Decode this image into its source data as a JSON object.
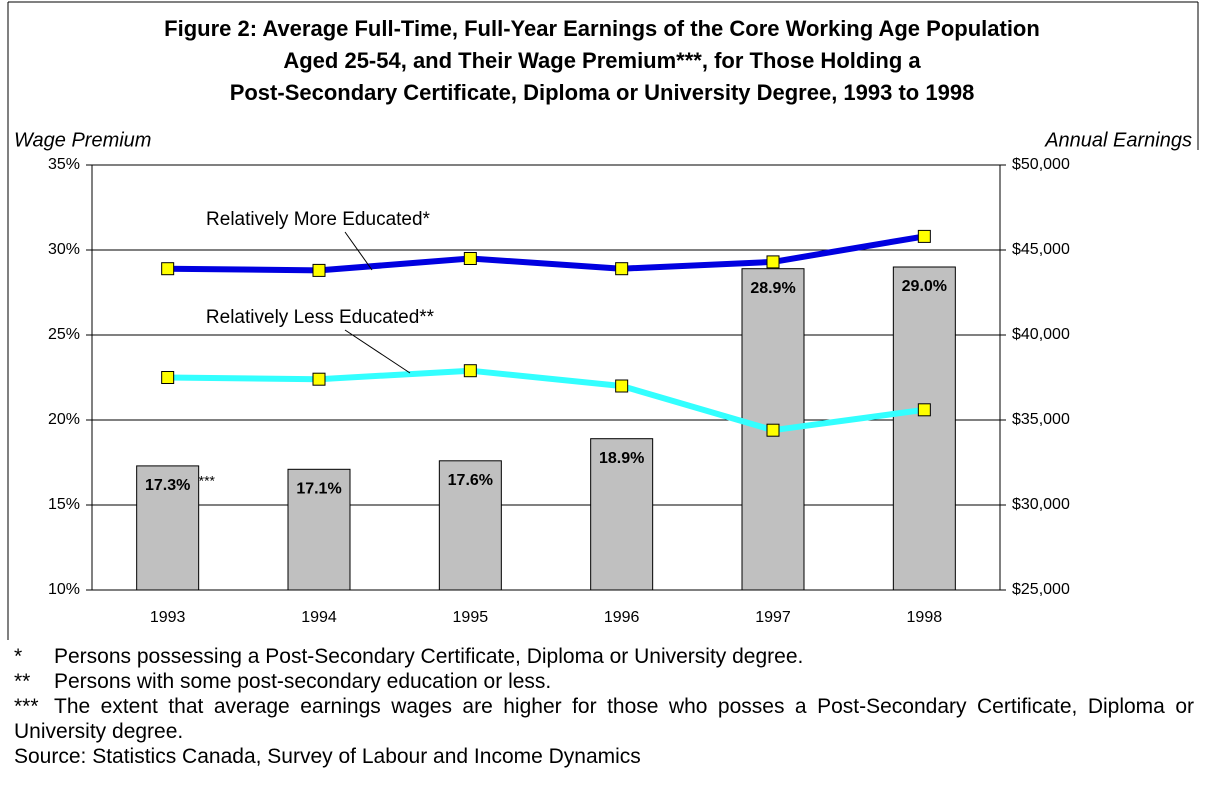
{
  "chart_data": {
    "type": "bar_line",
    "title": [
      "Figure 2:  Average Full-Time, Full-Year Earnings of the Core Working Age Population",
      "Aged 25-54, and Their Wage Premium***, for Those Holding a",
      "Post-Secondary Certificate, Diploma or University Degree, 1993 to 1998"
    ],
    "y_label": "Wage Premium",
    "y2_label": "Annual Earnings",
    "categories": [
      "1993",
      "1994",
      "1995",
      "1996",
      "1997",
      "1998"
    ],
    "bars": {
      "color": "#c0c0c0",
      "values": [
        17.3,
        17.1,
        17.6,
        18.9,
        28.9,
        29.0
      ],
      "value_labels": [
        "17.3%",
        "17.1%",
        "17.6%",
        "18.9%",
        "28.9%",
        "29.0%"
      ],
      "annotation": "***"
    },
    "series": [
      {
        "name": "Relatively More Educated*",
        "color": "#0000e0",
        "axis": "y2",
        "values": [
          43900,
          43800,
          44500,
          43900,
          44300,
          45800
        ]
      },
      {
        "name": "Relatively Less Educated**",
        "color": "#33ffff",
        "axis": "y2",
        "values": [
          37500,
          37400,
          37900,
          37000,
          34400,
          35600
        ]
      }
    ],
    "marker_color": "#ffff00",
    "ylim": [
      10,
      35
    ],
    "yticks": [
      {
        "value": 10,
        "label": "10%"
      },
      {
        "value": 15,
        "label": "15%"
      },
      {
        "value": 20,
        "label": "20%"
      },
      {
        "value": 25,
        "label": "25%"
      },
      {
        "value": 30,
        "label": "30%"
      },
      {
        "value": 35,
        "label": "35%"
      }
    ],
    "y2lim": [
      25000,
      50000
    ],
    "y2ticks": [
      {
        "value": 25000,
        "label": "$25,000"
      },
      {
        "value": 30000,
        "label": "$30,000"
      },
      {
        "value": 35000,
        "label": "$35,000"
      },
      {
        "value": 40000,
        "label": "$40,000"
      },
      {
        "value": 45000,
        "label": "$45,000"
      },
      {
        "value": 50000,
        "label": "$50,000"
      }
    ],
    "grid": true,
    "notes": [
      {
        "marker": "*",
        "text": "Persons possessing a Post-Secondary Certificate, Diploma or University degree."
      },
      {
        "marker": "**",
        "text": "Persons with some post-secondary education or less."
      },
      {
        "marker": "***",
        "text": "The extent that average earnings wages are higher for those who posses a Post-Secondary Certificate, Diploma or University degree."
      }
    ],
    "source": "Source: Statistics Canada, Survey of Labour and Income Dynamics"
  }
}
